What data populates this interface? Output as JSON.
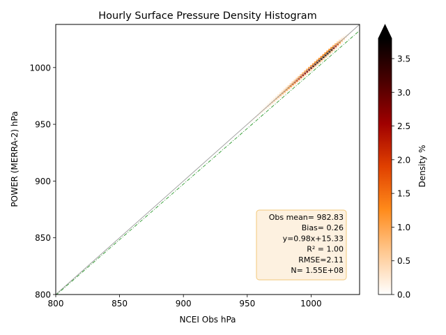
{
  "chart_data": {
    "type": "heatmap",
    "title": "Hourly Surface Pressure Density Histogram",
    "xlabel": "NCEI Obs hPa",
    "ylabel": "POWER (MERRA-2) hPa",
    "xlim": [
      800,
      1038
    ],
    "ylim": [
      800,
      1038
    ],
    "xticks": [
      800,
      850,
      900,
      950,
      1000
    ],
    "yticks": [
      800,
      850,
      900,
      950,
      1000
    ],
    "xtick_labels": [
      "800",
      "850",
      "900",
      "950",
      "1000"
    ],
    "ytick_labels": [
      "800",
      "850",
      "900",
      "950",
      "1000"
    ],
    "colorbar": {
      "label": "Density %",
      "range": [
        0.0,
        3.8
      ],
      "ticks": [
        0.0,
        0.5,
        1.0,
        1.5,
        2.0,
        2.5,
        3.0,
        3.5
      ],
      "tick_labels": [
        "0.0",
        "0.5",
        "1.0",
        "1.5",
        "2.0",
        "2.5",
        "3.0",
        "3.5"
      ],
      "extend": "max",
      "colors": [
        "#ffffff",
        "#ffc890",
        "#ff8a1a",
        "#e04000",
        "#a00000",
        "#4a0000",
        "#000000"
      ]
    },
    "one_to_one_line": {
      "color": "#999999"
    },
    "fit_line": {
      "slope": 0.98,
      "intercept": 15.33,
      "color": "#2e9a2e"
    },
    "density_peak": {
      "x": 1013,
      "y": 1013,
      "max": 3.8
    },
    "stats_box": {
      "lines": [
        "Obs mean= 982.83",
        "Bias= 0.26",
        "y=0.98x+15.33",
        "R² = 1.00",
        "RMSE=2.11",
        "N= 1.55E+08"
      ],
      "background": "#fdf1e0",
      "border": "#f2c87a"
    }
  }
}
